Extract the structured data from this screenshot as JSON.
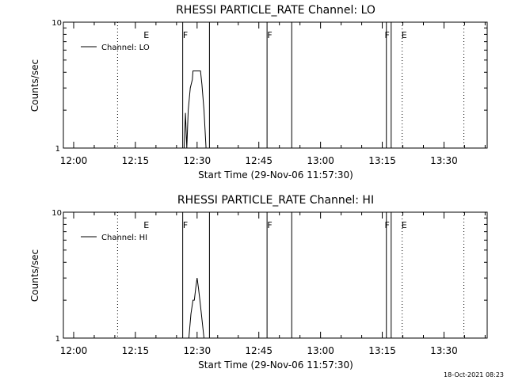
{
  "chart_data": [
    {
      "type": "line",
      "title": "RHESSI PARTICLE_RATE Channel: LO",
      "xlabel": "Start Time (29-Nov-06 11:57:30)",
      "ylabel": "Counts/sec",
      "yscale": "log",
      "ylim": [
        1,
        10
      ],
      "y_ticks": [
        {
          "value": 1,
          "label": "1"
        },
        {
          "value": 10,
          "label": "10"
        }
      ],
      "xlim": [
        "11:57:30",
        "13:40:30"
      ],
      "x_ticks": [
        "12:00",
        "12:15",
        "12:30",
        "12:45",
        "13:00",
        "13:15",
        "13:30"
      ],
      "legend": "top-left",
      "series": [
        {
          "name": "Channel: LO",
          "color": "#000000",
          "points": [
            {
              "x": "12:26:50",
              "y": 1.0
            },
            {
              "x": "12:27:10",
              "y": 1.9
            },
            {
              "x": "12:27:30",
              "y": 1.0
            },
            {
              "x": "12:27:50",
              "y": 2.0
            },
            {
              "x": "12:28:20",
              "y": 3.0
            },
            {
              "x": "12:28:50",
              "y": 3.5
            },
            {
              "x": "12:29:00",
              "y": 4.1
            },
            {
              "x": "12:30:50",
              "y": 4.1
            },
            {
              "x": "12:31:10",
              "y": 3.2
            },
            {
              "x": "12:31:40",
              "y": 2.0
            },
            {
              "x": "12:32:10",
              "y": 1.0
            }
          ]
        }
      ],
      "vertical_markers": [
        {
          "time": "12:10:40",
          "style": "dotted",
          "label": "E",
          "label_at": "12:17:40"
        },
        {
          "time": "12:26:30",
          "style": "solid",
          "label": "F",
          "label_at": "12:27:10"
        },
        {
          "time": "12:33:00",
          "style": "solid",
          "label": ""
        },
        {
          "time": "12:47:00",
          "style": "solid",
          "label": "F",
          "label_at": "12:47:40"
        },
        {
          "time": "12:53:00",
          "style": "solid",
          "label": ""
        },
        {
          "time": "13:16:00",
          "style": "solid",
          "label": "F",
          "label_at": "13:16:10"
        },
        {
          "time": "13:17:10",
          "style": "solid",
          "label": ""
        },
        {
          "time": "13:19:50",
          "style": "dotted",
          "label": "E",
          "label_at": "13:20:20"
        },
        {
          "time": "13:34:50",
          "style": "dotted",
          "label": ""
        }
      ]
    },
    {
      "type": "line",
      "title": "RHESSI PARTICLE_RATE Channel: HI",
      "xlabel": "Start Time (29-Nov-06 11:57:30)",
      "ylabel": "Counts/sec",
      "yscale": "log",
      "ylim": [
        1,
        10
      ],
      "y_ticks": [
        {
          "value": 1,
          "label": "1"
        },
        {
          "value": 10,
          "label": "10"
        }
      ],
      "xlim": [
        "11:57:30",
        "13:40:30"
      ],
      "x_ticks": [
        "12:00",
        "12:15",
        "12:30",
        "12:45",
        "13:00",
        "13:15",
        "13:30"
      ],
      "legend": "top-left",
      "series": [
        {
          "name": "Channel: HI",
          "color": "#000000",
          "points": [
            {
              "x": "12:28:00",
              "y": 1.0
            },
            {
              "x": "12:28:30",
              "y": 1.55
            },
            {
              "x": "12:29:00",
              "y": 2.0
            },
            {
              "x": "12:29:20",
              "y": 2.0
            },
            {
              "x": "12:29:40",
              "y": 2.5
            },
            {
              "x": "12:30:00",
              "y": 3.0
            },
            {
              "x": "12:30:20",
              "y": 2.5
            },
            {
              "x": "12:30:40",
              "y": 2.0
            },
            {
              "x": "12:31:00",
              "y": 1.6
            },
            {
              "x": "12:31:40",
              "y": 1.0
            }
          ]
        }
      ],
      "vertical_markers": [
        {
          "time": "12:10:40",
          "style": "dotted",
          "label": "E",
          "label_at": "12:17:40"
        },
        {
          "time": "12:26:30",
          "style": "solid",
          "label": "F",
          "label_at": "12:27:10"
        },
        {
          "time": "12:33:00",
          "style": "solid",
          "label": ""
        },
        {
          "time": "12:47:00",
          "style": "solid",
          "label": "F",
          "label_at": "12:47:40"
        },
        {
          "time": "12:53:00",
          "style": "solid",
          "label": ""
        },
        {
          "time": "13:16:00",
          "style": "solid",
          "label": "F",
          "label_at": "13:16:10"
        },
        {
          "time": "13:17:10",
          "style": "solid",
          "label": ""
        },
        {
          "time": "13:19:50",
          "style": "dotted",
          "label": "E",
          "label_at": "13:20:20"
        },
        {
          "time": "13:34:50",
          "style": "dotted",
          "label": ""
        }
      ]
    }
  ],
  "footer": {
    "timestamp": "18-Oct-2021 08:23"
  }
}
